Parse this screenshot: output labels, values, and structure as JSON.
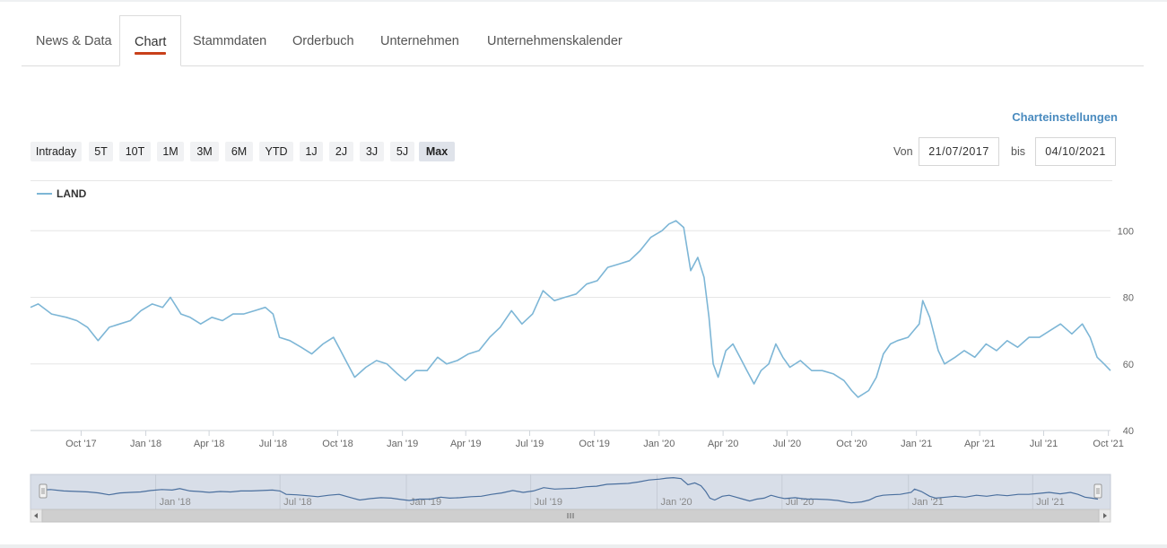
{
  "tabs": [
    {
      "label": "News & Data",
      "active": false
    },
    {
      "label": "Chart",
      "active": true
    },
    {
      "label": "Stammdaten",
      "active": false
    },
    {
      "label": "Orderbuch",
      "active": false
    },
    {
      "label": "Unternehmen",
      "active": false
    },
    {
      "label": "Unternehmenskalender",
      "active": false
    }
  ],
  "toolbar": {
    "settings_label": "Charteinstellungen",
    "ranges": [
      {
        "label": "Intraday",
        "active": false
      },
      {
        "label": "5T",
        "active": false
      },
      {
        "label": "10T",
        "active": false
      },
      {
        "label": "1M",
        "active": false
      },
      {
        "label": "3M",
        "active": false
      },
      {
        "label": "6M",
        "active": false
      },
      {
        "label": "YTD",
        "active": false
      },
      {
        "label": "1J",
        "active": false
      },
      {
        "label": "2J",
        "active": false
      },
      {
        "label": "3J",
        "active": false
      },
      {
        "label": "5J",
        "active": false
      },
      {
        "label": "Max",
        "active": true
      }
    ],
    "from_label": "Von",
    "from_value": "21/07/2017",
    "to_label": "bis",
    "to_value": "04/10/2021"
  },
  "colors": {
    "line": "#7db6d6",
    "navigator_line": "#4a6f9e",
    "navigator_fill": "#d8dee8",
    "active_tab_underline": "#c8401a",
    "settings_link": "#4a8bbf"
  },
  "chart_data": {
    "type": "line",
    "title": "",
    "xlabel": "",
    "ylabel": "",
    "grid": true,
    "legend_position": "top-left",
    "ylim": [
      40,
      106
    ],
    "xlim": [
      "2017-07-21",
      "2021-10-04"
    ],
    "yticks": [
      40,
      60,
      80,
      100
    ],
    "ytick_labels": [
      "40",
      "60",
      "80",
      "100"
    ],
    "xticks": [
      "2017-10-01",
      "2018-01-01",
      "2018-04-01",
      "2018-07-01",
      "2018-10-01",
      "2019-01-01",
      "2019-04-01",
      "2019-07-01",
      "2019-10-01",
      "2020-01-01",
      "2020-04-01",
      "2020-07-01",
      "2020-10-01",
      "2021-01-01",
      "2021-04-01",
      "2021-07-01",
      "2021-10-01"
    ],
    "xtick_labels": [
      "Oct '17",
      "Jan '18",
      "Apr '18",
      "Jul '18",
      "Oct '18",
      "Jan '19",
      "Apr '19",
      "Jul '19",
      "Oct '19",
      "Jan '20",
      "Apr '20",
      "Jul '20",
      "Oct '20",
      "Jan '21",
      "Apr '21",
      "Jul '21",
      "Oct '21"
    ],
    "navigator_tick_labels": [
      "Jan '18",
      "Jul '18",
      "Jan '19",
      "Jul '19",
      "Jan '20",
      "Jul '20",
      "Jan '21",
      "Jul '21"
    ],
    "navigator_ticks": [
      "2018-01-01",
      "2018-07-01",
      "2019-01-01",
      "2019-07-01",
      "2020-01-01",
      "2020-07-01",
      "2021-01-01",
      "2021-07-01"
    ],
    "series": [
      {
        "name": "LAND",
        "x": [
          "2017-07-21",
          "2017-08-01",
          "2017-08-20",
          "2017-09-10",
          "2017-09-25",
          "2017-10-10",
          "2017-10-25",
          "2017-11-10",
          "2017-11-25",
          "2017-12-10",
          "2017-12-25",
          "2018-01-10",
          "2018-01-25",
          "2018-02-05",
          "2018-02-20",
          "2018-03-05",
          "2018-03-20",
          "2018-04-05",
          "2018-04-20",
          "2018-05-05",
          "2018-05-20",
          "2018-06-05",
          "2018-06-20",
          "2018-07-01",
          "2018-07-10",
          "2018-07-25",
          "2018-08-10",
          "2018-08-25",
          "2018-09-10",
          "2018-09-25",
          "2018-10-05",
          "2018-10-15",
          "2018-10-25",
          "2018-11-10",
          "2018-11-25",
          "2018-12-10",
          "2018-12-25",
          "2019-01-05",
          "2019-01-20",
          "2019-02-05",
          "2019-02-20",
          "2019-03-05",
          "2019-03-20",
          "2019-04-05",
          "2019-04-20",
          "2019-05-05",
          "2019-05-20",
          "2019-06-05",
          "2019-06-20",
          "2019-07-05",
          "2019-07-20",
          "2019-08-05",
          "2019-08-20",
          "2019-09-05",
          "2019-09-20",
          "2019-10-05",
          "2019-10-20",
          "2019-11-05",
          "2019-11-20",
          "2019-12-05",
          "2019-12-20",
          "2020-01-05",
          "2020-01-15",
          "2020-01-25",
          "2020-02-05",
          "2020-02-15",
          "2020-02-25",
          "2020-03-05",
          "2020-03-12",
          "2020-03-18",
          "2020-03-25",
          "2020-04-05",
          "2020-04-15",
          "2020-04-25",
          "2020-05-05",
          "2020-05-15",
          "2020-05-25",
          "2020-06-05",
          "2020-06-15",
          "2020-06-25",
          "2020-07-05",
          "2020-07-20",
          "2020-08-05",
          "2020-08-20",
          "2020-09-05",
          "2020-09-20",
          "2020-10-01",
          "2020-10-10",
          "2020-10-25",
          "2020-11-05",
          "2020-11-15",
          "2020-11-25",
          "2020-12-05",
          "2020-12-20",
          "2021-01-05",
          "2021-01-10",
          "2021-01-20",
          "2021-02-01",
          "2021-02-10",
          "2021-02-25",
          "2021-03-10",
          "2021-03-25",
          "2021-04-10",
          "2021-04-25",
          "2021-05-10",
          "2021-05-25",
          "2021-06-10",
          "2021-06-25",
          "2021-07-10",
          "2021-07-25",
          "2021-08-10",
          "2021-08-25",
          "2021-09-05",
          "2021-09-15",
          "2021-09-25",
          "2021-10-04"
        ],
        "values": [
          77,
          78,
          75,
          74,
          73,
          71,
          67,
          71,
          72,
          73,
          76,
          78,
          77,
          80,
          75,
          74,
          72,
          74,
          73,
          75,
          75,
          76,
          77,
          75,
          68,
          67,
          65,
          63,
          66,
          68,
          64,
          60,
          56,
          59,
          61,
          60,
          57,
          55,
          58,
          58,
          62,
          60,
          61,
          63,
          64,
          68,
          71,
          76,
          72,
          75,
          82,
          79,
          80,
          81,
          84,
          85,
          89,
          90,
          91,
          94,
          98,
          100,
          102,
          103,
          101,
          88,
          92,
          86,
          74,
          60,
          56,
          64,
          66,
          62,
          58,
          54,
          58,
          60,
          66,
          62,
          59,
          61,
          58,
          58,
          57,
          55,
          52,
          50,
          52,
          56,
          63,
          66,
          67,
          68,
          72,
          79,
          74,
          64,
          60,
          62,
          64,
          62,
          66,
          64,
          67,
          65,
          68,
          68,
          70,
          72,
          69,
          72,
          68,
          62,
          60,
          58
        ]
      }
    ]
  }
}
